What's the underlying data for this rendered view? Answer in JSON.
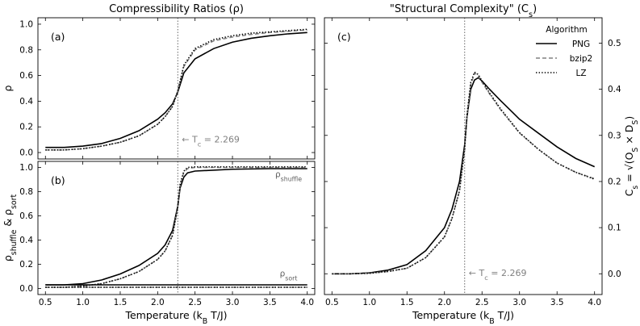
{
  "chart_data": [
    {
      "id": "a",
      "type": "line",
      "title": "Compressibility Ratios (ρ)",
      "panel_label": "(a)",
      "ylabel": "ρ",
      "xlabel": "",
      "xlim": [
        0.4,
        4.1
      ],
      "ylim": [
        -0.05,
        1.05
      ],
      "xticks": [
        0.5,
        1.0,
        1.5,
        2.0,
        2.5,
        3.0,
        3.5,
        4.0
      ],
      "xticklabels": [
        "",
        "",
        "",
        "",
        "",
        "",
        "",
        ""
      ],
      "yticks": [
        0.0,
        0.2,
        0.4,
        0.6,
        0.8,
        1.0
      ],
      "yticklabels": [
        "0.0",
        "0.2",
        "0.4",
        "0.6",
        "0.8",
        "1.0"
      ],
      "vline": {
        "x": 2.269,
        "label": "← T_c = 2.269"
      },
      "series": [
        {
          "name": "PNG",
          "style": "solid",
          "x": [
            0.5,
            0.75,
            1.0,
            1.25,
            1.5,
            1.75,
            2.0,
            2.1,
            2.2,
            2.269,
            2.35,
            2.5,
            2.75,
            3.0,
            3.25,
            3.5,
            3.75,
            4.0
          ],
          "y": [
            0.04,
            0.04,
            0.05,
            0.07,
            0.11,
            0.17,
            0.26,
            0.31,
            0.38,
            0.47,
            0.62,
            0.73,
            0.81,
            0.86,
            0.89,
            0.91,
            0.925,
            0.935
          ]
        },
        {
          "name": "bzip2",
          "style": "dashed",
          "x": [
            0.5,
            0.75,
            1.0,
            1.25,
            1.5,
            1.75,
            2.0,
            2.1,
            2.2,
            2.269,
            2.35,
            2.5,
            2.75,
            3.0,
            3.25,
            3.5,
            3.75,
            4.0
          ],
          "y": [
            0.02,
            0.02,
            0.03,
            0.05,
            0.08,
            0.13,
            0.22,
            0.28,
            0.36,
            0.48,
            0.67,
            0.8,
            0.87,
            0.9,
            0.92,
            0.935,
            0.945,
            0.955
          ]
        },
        {
          "name": "LZ",
          "style": "dotted",
          "x": [
            0.5,
            0.75,
            1.0,
            1.25,
            1.5,
            1.75,
            2.0,
            2.1,
            2.2,
            2.269,
            2.35,
            2.5,
            2.75,
            3.0,
            3.25,
            3.5,
            3.75,
            4.0
          ],
          "y": [
            0.02,
            0.02,
            0.03,
            0.05,
            0.08,
            0.13,
            0.22,
            0.28,
            0.36,
            0.48,
            0.68,
            0.81,
            0.88,
            0.91,
            0.93,
            0.94,
            0.95,
            0.96
          ]
        }
      ]
    },
    {
      "id": "b",
      "type": "line",
      "title": "",
      "panel_label": "(b)",
      "ylabel": "ρ_shuffle & ρ_sort",
      "xlabel": "Temperature (k_B T/J)",
      "xlim": [
        0.4,
        4.1
      ],
      "ylim": [
        -0.05,
        1.05
      ],
      "xticks": [
        0.5,
        1.0,
        1.5,
        2.0,
        2.5,
        3.0,
        3.5,
        4.0
      ],
      "xticklabels": [
        "0.5",
        "1.0",
        "1.5",
        "2.0",
        "2.5",
        "3.0",
        "3.5",
        "4.0"
      ],
      "yticks": [
        0.0,
        0.2,
        0.4,
        0.6,
        0.8,
        1.0
      ],
      "yticklabels": [
        "0.0",
        "0.2",
        "0.4",
        "0.6",
        "0.8",
        "1.0"
      ],
      "vline": {
        "x": 2.269,
        "label": ""
      },
      "annotations": [
        {
          "text": "ρ_shuffle",
          "x": 3.75,
          "y": 0.92
        },
        {
          "text": "ρ_sort",
          "x": 3.75,
          "y": 0.1
        }
      ],
      "series": [
        {
          "name": "PNG (shuffle)",
          "style": "solid",
          "x": [
            0.5,
            0.75,
            1.0,
            1.25,
            1.5,
            1.75,
            2.0,
            2.1,
            2.2,
            2.269,
            2.3,
            2.35,
            2.4,
            2.5,
            3.0,
            3.5,
            4.0
          ],
          "y": [
            0.03,
            0.03,
            0.04,
            0.07,
            0.12,
            0.19,
            0.29,
            0.36,
            0.48,
            0.68,
            0.83,
            0.92,
            0.955,
            0.97,
            0.985,
            0.99,
            0.99
          ]
        },
        {
          "name": "bzip2 (shuffle)",
          "style": "dashed",
          "x": [
            0.5,
            0.75,
            1.0,
            1.25,
            1.5,
            1.75,
            2.0,
            2.1,
            2.2,
            2.269,
            2.3,
            2.35,
            2.4,
            2.5,
            3.0,
            3.5,
            4.0
          ],
          "y": [
            0.01,
            0.01,
            0.02,
            0.04,
            0.08,
            0.14,
            0.24,
            0.31,
            0.44,
            0.67,
            0.85,
            0.96,
            0.99,
            1.0,
            1.0,
            1.0,
            1.0
          ]
        },
        {
          "name": "LZ (shuffle)",
          "style": "dotted",
          "x": [
            0.5,
            0.75,
            1.0,
            1.25,
            1.5,
            1.75,
            2.0,
            2.1,
            2.2,
            2.269,
            2.3,
            2.35,
            2.4,
            2.5,
            3.0,
            3.5,
            4.0
          ],
          "y": [
            0.01,
            0.01,
            0.02,
            0.04,
            0.08,
            0.14,
            0.24,
            0.31,
            0.44,
            0.67,
            0.86,
            0.97,
            1.0,
            1.005,
            1.005,
            1.005,
            1.005
          ]
        },
        {
          "name": "PNG (sort)",
          "style": "solid",
          "x": [
            0.5,
            4.0
          ],
          "y": [
            0.03,
            0.03
          ]
        },
        {
          "name": "bzip2 (sort)",
          "style": "dashed",
          "x": [
            0.5,
            4.0
          ],
          "y": [
            0.01,
            0.01
          ]
        },
        {
          "name": "LZ (sort)",
          "style": "dotted",
          "x": [
            0.5,
            4.0
          ],
          "y": [
            0.01,
            0.01
          ]
        }
      ]
    },
    {
      "id": "c",
      "type": "line",
      "title": "\"Structural Complexity\" (C_s)",
      "panel_label": "(c)",
      "ylabel": "C_s = √(O_S × D_S)",
      "xlabel": "Temperature (k_B T/J)",
      "xlim": [
        0.4,
        4.1
      ],
      "ylim": [
        -0.045,
        0.555
      ],
      "xticks": [
        0.5,
        1.0,
        1.5,
        2.0,
        2.5,
        3.0,
        3.5,
        4.0
      ],
      "xticklabels": [
        "0.5",
        "1.0",
        "1.5",
        "2.0",
        "2.5",
        "3.0",
        "3.5",
        "4.0"
      ],
      "yticks": [
        0.0,
        0.1,
        0.2,
        0.3,
        0.4,
        0.5
      ],
      "yticklabels": [
        "0.0",
        "0.1",
        "0.2",
        "0.3",
        "0.4",
        "0.5"
      ],
      "y_axis_side": "right",
      "vline": {
        "x": 2.269,
        "label": "← T_c = 2.269"
      },
      "legend": {
        "title": "Algorithm",
        "placement": "top-right",
        "entries": [
          "PNG",
          "bzip2",
          "LZ"
        ]
      },
      "series": [
        {
          "name": "PNG",
          "style": "solid",
          "x": [
            0.5,
            0.75,
            1.0,
            1.25,
            1.5,
            1.75,
            2.0,
            2.1,
            2.2,
            2.269,
            2.3,
            2.35,
            2.4,
            2.45,
            2.5,
            2.6,
            2.75,
            3.0,
            3.25,
            3.5,
            3.75,
            4.0
          ],
          "y": [
            0.0,
            0.0,
            0.002,
            0.008,
            0.02,
            0.05,
            0.1,
            0.14,
            0.2,
            0.28,
            0.34,
            0.4,
            0.42,
            0.425,
            0.418,
            0.4,
            0.375,
            0.335,
            0.305,
            0.275,
            0.25,
            0.232
          ]
        },
        {
          "name": "bzip2",
          "style": "dashed",
          "x": [
            0.5,
            0.75,
            1.0,
            1.25,
            1.5,
            1.75,
            2.0,
            2.1,
            2.2,
            2.269,
            2.3,
            2.35,
            2.4,
            2.45,
            2.5,
            2.6,
            2.75,
            3.0,
            3.25,
            3.5,
            3.75,
            4.0
          ],
          "y": [
            0.0,
            0.0,
            0.001,
            0.005,
            0.012,
            0.035,
            0.08,
            0.12,
            0.18,
            0.27,
            0.34,
            0.41,
            0.435,
            0.43,
            0.415,
            0.39,
            0.355,
            0.305,
            0.27,
            0.24,
            0.22,
            0.206
          ]
        },
        {
          "name": "LZ",
          "style": "dotted",
          "x": [
            0.5,
            0.75,
            1.0,
            1.25,
            1.5,
            1.75,
            2.0,
            2.1,
            2.2,
            2.269,
            2.3,
            2.35,
            2.4,
            2.45,
            2.5,
            2.6,
            2.75,
            3.0,
            3.25,
            3.5,
            3.75,
            4.0
          ],
          "y": [
            0.0,
            0.0,
            0.001,
            0.005,
            0.012,
            0.035,
            0.08,
            0.12,
            0.18,
            0.27,
            0.345,
            0.415,
            0.437,
            0.432,
            0.418,
            0.392,
            0.357,
            0.306,
            0.27,
            0.24,
            0.22,
            0.205
          ]
        }
      ]
    }
  ]
}
